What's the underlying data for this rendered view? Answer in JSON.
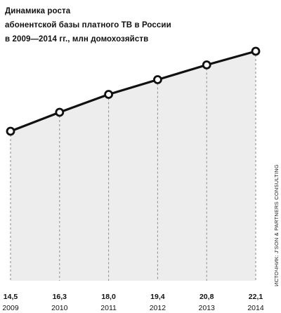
{
  "title_lines": [
    "Динамика роста",
    "абонентской базы платного ТВ в России",
    "в 2009—2014 гг., млн домохозяйств"
  ],
  "source": "ИСТОЧНИК: J’SON & PARTNERS CONSULTING",
  "colors": {
    "line": "#111111",
    "fill": "#ededed",
    "marker_fill": "#ffffff",
    "grid": "#8a8a8a"
  },
  "chart_data": {
    "type": "area",
    "title": "Динамика роста абонентской базы платного ТВ в России в 2009—2014 гг., млн домохозяйств",
    "categories": [
      "2009",
      "2010",
      "2011",
      "2012",
      "2013",
      "2014"
    ],
    "value_labels": [
      "14,5",
      "16,3",
      "18,0",
      "19,4",
      "20,8",
      "22,1"
    ],
    "series": [
      {
        "values": [
          14.5,
          16.3,
          18.0,
          19.4,
          20.8,
          22.1
        ]
      }
    ],
    "xlabel": "",
    "ylabel": "",
    "grid": true,
    "gridline_style": "dashed-vertical",
    "markers": "open-circle"
  }
}
